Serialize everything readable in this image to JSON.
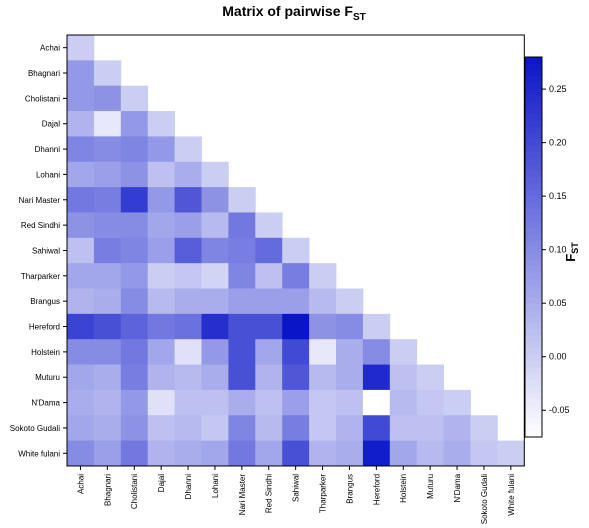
{
  "chart_data": {
    "type": "heatmap",
    "title": "Matrix of pairwise F",
    "title_subscript": "ST",
    "colorbar_label": "F",
    "colorbar_label_subscript": "ST",
    "labels": [
      "Achai",
      "Bhagnari",
      "Cholistani",
      "Dajal",
      "Dhanni",
      "Lohani",
      "Nari Master",
      "Red Sindhi",
      "Sahiwal",
      "Tharparker",
      "Brangus",
      "Hereford",
      "Holstein",
      "Muturu",
      "N'Dama",
      "Sokoto Gudali",
      "White fulani"
    ],
    "layout": "lower-triangle including diagonal",
    "values": [
      [
        0.0
      ],
      [
        0.08,
        0.0
      ],
      [
        0.08,
        0.09,
        0.0
      ],
      [
        0.04,
        -0.04,
        0.08,
        0.0
      ],
      [
        0.11,
        0.1,
        0.11,
        0.08,
        0.0
      ],
      [
        0.06,
        0.07,
        0.09,
        0.02,
        0.05,
        0.0
      ],
      [
        0.13,
        0.12,
        0.22,
        0.08,
        0.18,
        0.09,
        0.0
      ],
      [
        0.09,
        0.1,
        0.1,
        0.06,
        0.07,
        0.03,
        0.13,
        0.0
      ],
      [
        0.02,
        0.12,
        0.11,
        0.07,
        0.17,
        0.11,
        0.12,
        0.15,
        0.0
      ],
      [
        0.06,
        0.06,
        0.08,
        0.0,
        0.01,
        -0.01,
        0.11,
        0.02,
        0.12,
        0.0
      ],
      [
        0.04,
        0.05,
        0.1,
        0.03,
        0.05,
        0.05,
        0.07,
        0.07,
        0.07,
        0.03,
        0.0
      ],
      [
        0.21,
        0.19,
        0.16,
        0.13,
        0.14,
        0.24,
        0.19,
        0.19,
        0.29,
        0.09,
        0.1,
        0.0
      ],
      [
        0.1,
        0.1,
        0.13,
        0.06,
        -0.03,
        0.08,
        0.19,
        0.06,
        0.2,
        -0.04,
        0.05,
        0.1,
        0.0
      ],
      [
        0.06,
        0.05,
        0.12,
        0.04,
        0.03,
        0.05,
        0.19,
        0.04,
        0.18,
        0.03,
        0.05,
        0.25,
        0.02,
        0.0
      ],
      [
        0.05,
        0.04,
        0.08,
        -0.03,
        0.02,
        0.02,
        0.05,
        0.02,
        0.07,
        0.01,
        0.02,
        -0.08,
        0.03,
        0.01,
        0.0
      ],
      [
        0.06,
        0.05,
        0.09,
        0.02,
        0.03,
        0.01,
        0.11,
        0.03,
        0.12,
        0.01,
        0.04,
        0.2,
        0.02,
        0.02,
        0.04,
        0.0
      ],
      [
        0.1,
        0.07,
        0.13,
        0.04,
        0.05,
        0.06,
        0.13,
        0.06,
        0.19,
        0.04,
        0.05,
        0.27,
        0.06,
        0.03,
        0.05,
        0.01,
        0.0
      ]
    ],
    "colorbar": {
      "range": [
        -0.075,
        0.28
      ],
      "ticks": [
        -0.05,
        0.0,
        0.05,
        0.1,
        0.15,
        0.2,
        0.25
      ],
      "tick_labels": [
        "-0.05",
        "0.00",
        "0.05",
        "0.10",
        "0.15",
        "0.20",
        "0.25"
      ],
      "colors": {
        "low": "#ffffff",
        "high": "#0a15c8"
      }
    }
  }
}
